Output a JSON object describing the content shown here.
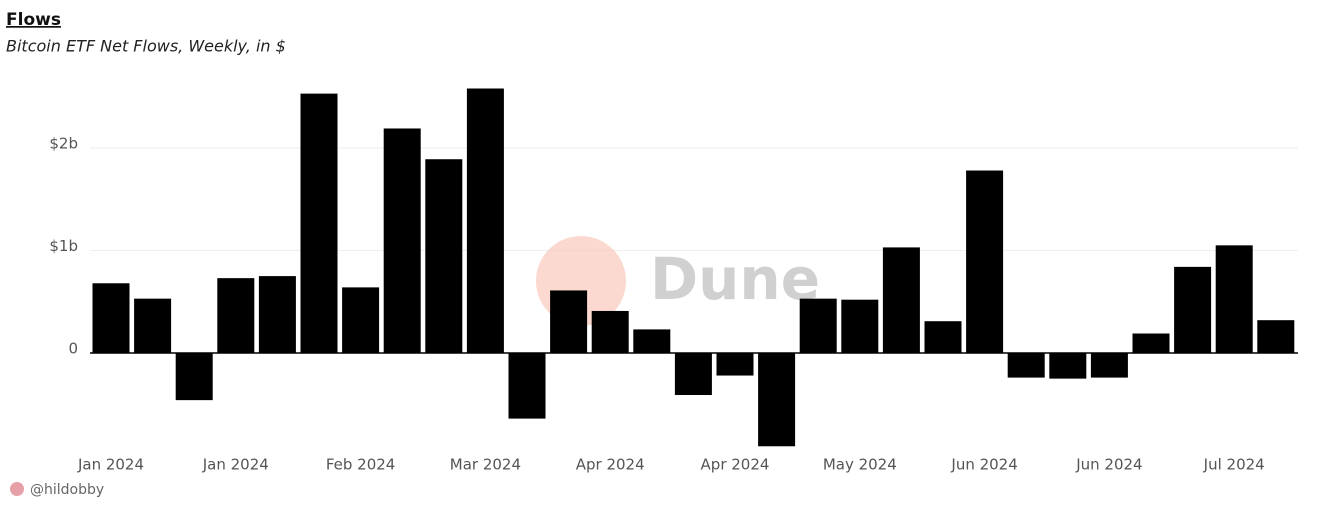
{
  "chart_data": {
    "type": "bar",
    "title": "Flows",
    "subtitle": "Bitcoin ETF Net Flows, Weekly, in $",
    "categories": [
      "Jan 2024",
      null,
      null,
      "Jan 2024",
      null,
      null,
      "Feb 2024",
      null,
      null,
      "Mar 2024",
      null,
      null,
      "Apr 2024",
      null,
      null,
      "Apr 2024",
      null,
      null,
      "May 2024",
      null,
      null,
      "Jun 2024",
      null,
      null,
      "Jun 2024",
      null,
      null,
      "Jul 2024",
      null
    ],
    "values": [
      680000000,
      530000000,
      -460000000,
      730000000,
      750000000,
      2530000000,
      640000000,
      2190000000,
      1890000000,
      2580000000,
      -640000000,
      610000000,
      410000000,
      230000000,
      -410000000,
      -220000000,
      -910000000,
      530000000,
      520000000,
      1030000000,
      310000000,
      1780000000,
      -240000000,
      -250000000,
      -240000000,
      190000000,
      840000000,
      1050000000,
      320000000
    ],
    "color": "#000000",
    "ylim": [
      -920000000,
      2620000000
    ],
    "yticks": [
      0,
      {
        "value": 1000000000,
        "label": "$1b"
      },
      {
        "value": 2000000000,
        "label": "$2b"
      }
    ],
    "grid": true,
    "watermark": "Dune",
    "author": "@hildobby"
  }
}
